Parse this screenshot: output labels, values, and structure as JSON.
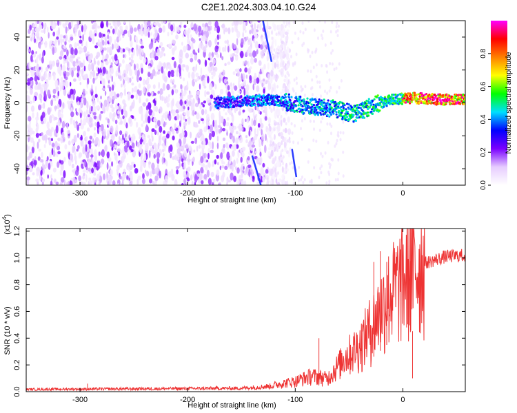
{
  "title": "C2E1.2024.303.04.10.G24",
  "chart_data": [
    {
      "type": "heatmap",
      "xlabel": "Height of straight line (km)",
      "ylabel": "Frequency (Hz)",
      "xlim": [
        -350,
        58
      ],
      "ylim": [
        -50,
        50
      ],
      "x_ticks": [
        -300,
        -200,
        -100,
        0
      ],
      "y_ticks": [
        -40,
        -20,
        0,
        20,
        40
      ],
      "colorbar": {
        "label": "Normalized spectral amplitude",
        "range": [
          0.0,
          1.0
        ],
        "ticks": [
          "0.0",
          "0.2",
          "0.4",
          "0.6",
          "0.8"
        ],
        "colors": [
          "#ffffff",
          "#e6ccff",
          "#7a00ff",
          "#0000ff",
          "#00e0ff",
          "#00ff00",
          "#ffff00",
          "#ff8000",
          "#ff0000",
          "#ff00ff"
        ]
      },
      "signal_trace": [
        {
          "x": -175,
          "y": 0
        },
        {
          "x": -120,
          "y": 2
        },
        {
          "x": -90,
          "y": -2
        },
        {
          "x": -60,
          "y": -4
        },
        {
          "x": -45,
          "y": -7
        },
        {
          "x": -30,
          "y": -2
        },
        {
          "x": -10,
          "y": 2
        },
        {
          "x": 10,
          "y": 3
        },
        {
          "x": 35,
          "y": 2
        },
        {
          "x": 58,
          "y": 2
        }
      ],
      "noise_region_end_x": -125
    },
    {
      "type": "line",
      "xlabel": "Height of straight line (km)",
      "ylabel": "SNR (10 * v/v)",
      "multiplier": "(x10",
      "multiplier_exp": "4",
      "multiplier_close": ")",
      "xlim": [
        -350,
        58
      ],
      "ylim": [
        0,
        1.22
      ],
      "x_ticks": [
        -300,
        -200,
        -100,
        0
      ],
      "y_ticks": [
        "0.0",
        "0.2",
        "0.4",
        "0.6",
        "0.8",
        "1.0",
        "1.2"
      ],
      "color": "#ee3333",
      "envelope": [
        {
          "x": -350,
          "y": 0.02
        },
        {
          "x": -150,
          "y": 0.03
        },
        {
          "x": -120,
          "y": 0.05
        },
        {
          "x": -100,
          "y": 0.08
        },
        {
          "x": -85,
          "y": 0.12
        },
        {
          "x": -70,
          "y": 0.1
        },
        {
          "x": -55,
          "y": 0.25
        },
        {
          "x": -40,
          "y": 0.35
        },
        {
          "x": -25,
          "y": 0.55
        },
        {
          "x": -15,
          "y": 0.7
        },
        {
          "x": -5,
          "y": 0.8
        },
        {
          "x": 5,
          "y": 0.88
        },
        {
          "x": 20,
          "y": 0.97
        },
        {
          "x": 40,
          "y": 1.02
        },
        {
          "x": 58,
          "y": 1.03
        }
      ],
      "spikes": [
        {
          "x": -293,
          "y": 0.06
        },
        {
          "x": -78,
          "y": 0.4
        },
        {
          "x": -27,
          "y": 0.97
        },
        {
          "x": -21,
          "y": 1.05
        },
        {
          "x": -15,
          "y": 0.97
        },
        {
          "x": 7,
          "y": 1.22
        },
        {
          "x": 9,
          "y": 0.1
        }
      ]
    }
  ]
}
